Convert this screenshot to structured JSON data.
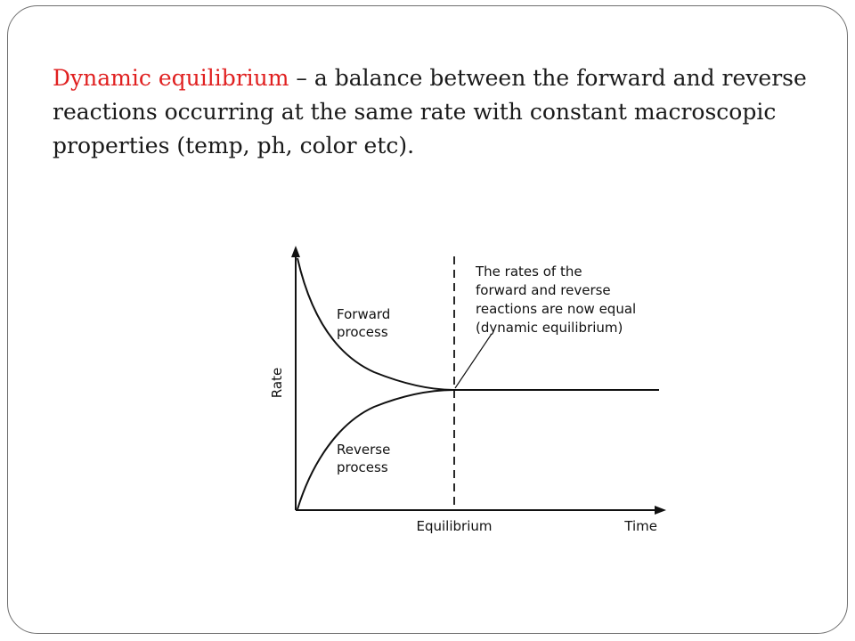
{
  "slide": {
    "term": "Dynamic equilibrium",
    "definition": " – a balance between the forward and reverse reactions occurring at the same rate with constant macroscopic properties (temp, ph, color etc).",
    "colors": {
      "term": "#e02020",
      "text": "#1a1a1a",
      "border": "#6f6f6f"
    }
  },
  "diagram": {
    "y_axis_label": "Rate",
    "x_axis_label": "Time",
    "equilibrium_label": "Equilibrium",
    "forward_label_line1": "Forward",
    "forward_label_line2": "process",
    "reverse_label_line1": "Reverse",
    "reverse_label_line2": "process",
    "annotation_line1": "The rates of the",
    "annotation_line2": "forward and reverse",
    "annotation_line3": "reactions are now equal",
    "annotation_line4": "(dynamic equilibrium)"
  }
}
